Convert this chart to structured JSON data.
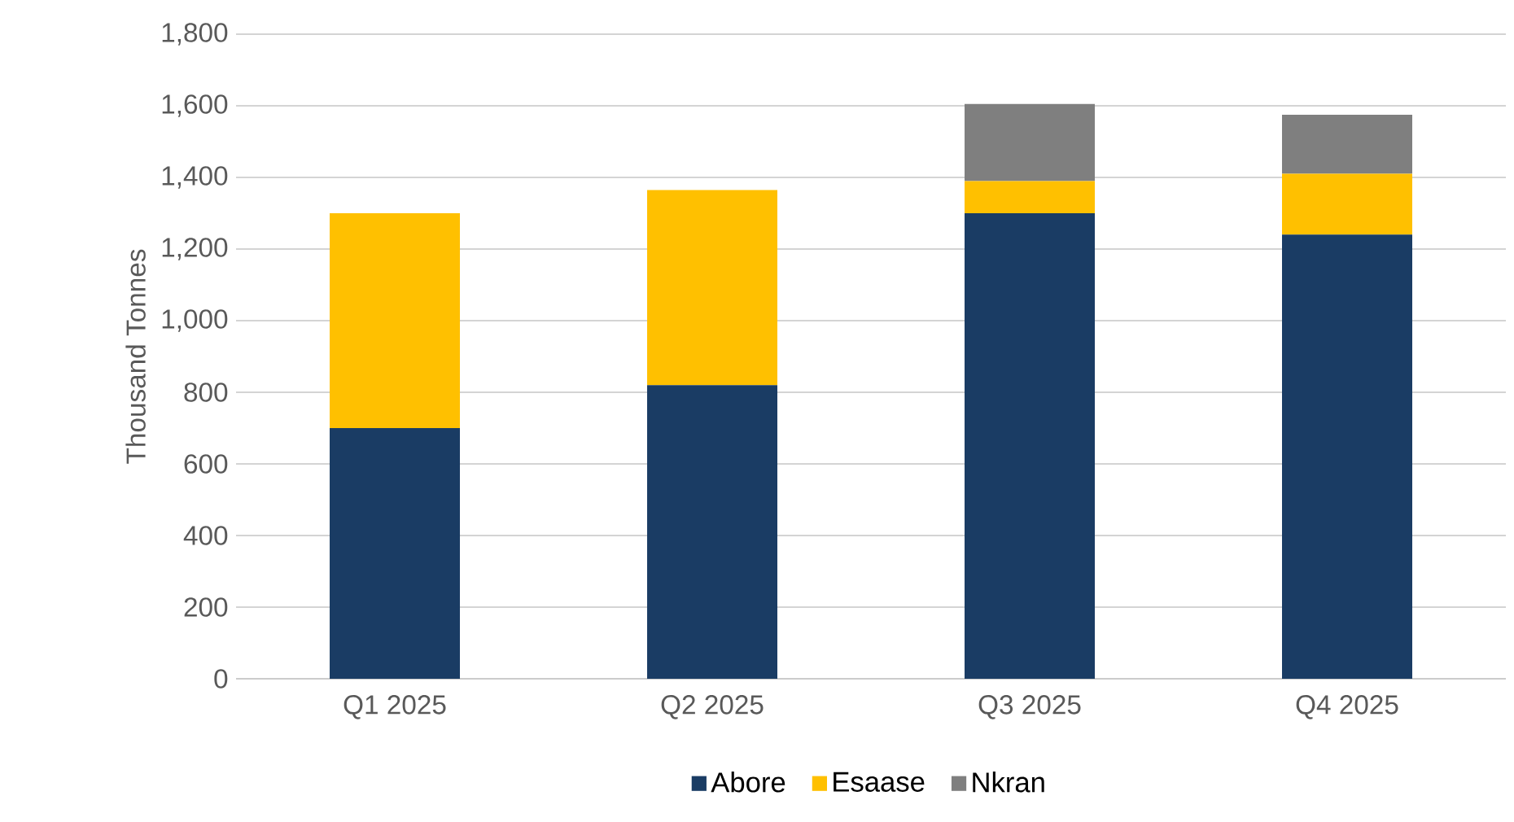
{
  "chart_data": {
    "type": "bar",
    "stacked": true,
    "ylabel": "Thousand Tonnes",
    "categories": [
      "Q1 2025",
      "Q2 2025",
      "Q3 2025",
      "Q4 2025"
    ],
    "series": [
      {
        "name": "Abore",
        "color": "#1a3c64",
        "values": [
          700,
          820,
          1300,
          1240
        ]
      },
      {
        "name": "Esaase",
        "color": "#ffc000",
        "values": [
          600,
          545,
          90,
          170
        ]
      },
      {
        "name": "Nkran",
        "color": "#7f7f7f",
        "values": [
          0,
          0,
          215,
          165
        ]
      }
    ],
    "ylim": [
      0,
      1800
    ],
    "yticks": [
      0,
      200,
      400,
      600,
      800,
      {
        "value": 1000,
        "label": "1,000"
      },
      {
        "value": 1200,
        "label": "1,200"
      },
      {
        "value": 1400,
        "label": "1,400"
      },
      {
        "value": 1600,
        "label": "1,600"
      },
      {
        "value": 1800,
        "label": "1,800"
      }
    ],
    "grid": "y",
    "legend": "bottom"
  }
}
